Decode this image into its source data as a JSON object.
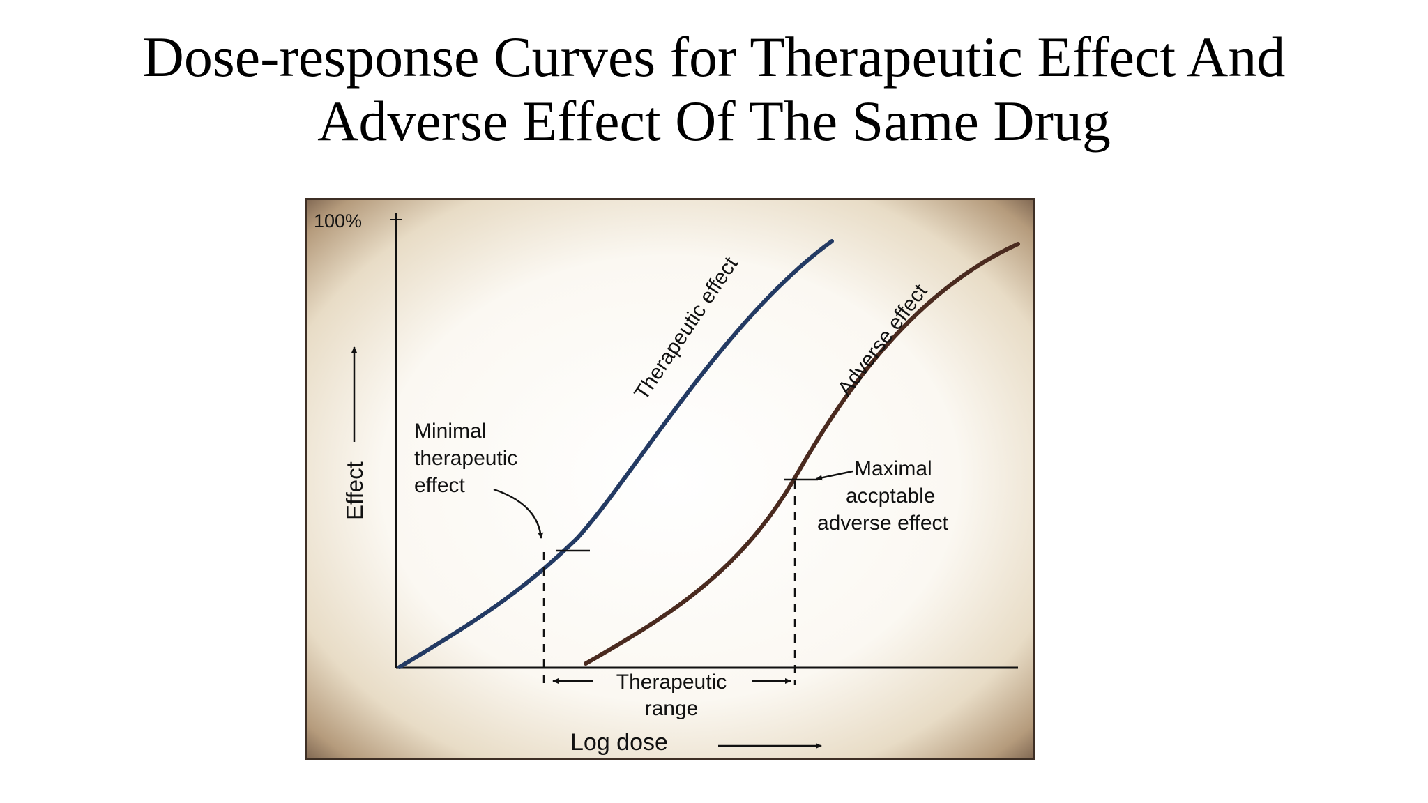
{
  "title": {
    "line1": "Dose-response Curves for Therapeutic Effect And",
    "line2": "Adverse Effect Of The Same Drug"
  },
  "diagram": {
    "y_axis": {
      "label": "Effect",
      "top_tick": "100%"
    },
    "x_axis": {
      "label": "Log dose"
    },
    "curves": [
      {
        "name": "Therapeutic effect",
        "color": "#233a63"
      },
      {
        "name": "Adverse effect",
        "color": "#4a2a1f"
      }
    ],
    "annotations": {
      "minimal": [
        "Minimal",
        "therapeutic",
        "effect"
      ],
      "maximal": [
        "Maximal",
        "accptable",
        "adverse effect"
      ],
      "range": [
        "Therapeutic",
        "range"
      ]
    },
    "colors": {
      "frame_edge": "#5b4636",
      "frame_inner": "#f5efe4"
    }
  }
}
